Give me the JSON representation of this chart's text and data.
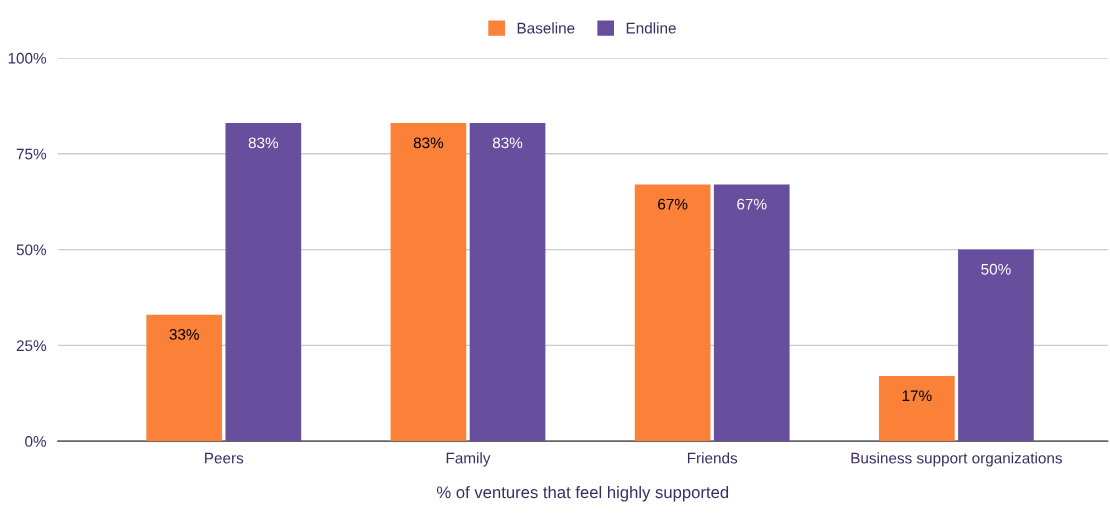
{
  "chart_data": {
    "type": "bar",
    "xlabel": "% of ventures that feel highly supported",
    "categories": [
      "Peers",
      "Family",
      "Friends",
      "Business support organizations"
    ],
    "series": [
      {
        "name": "Baseline",
        "color": "#fb8139",
        "values": [
          33,
          83,
          67,
          17
        ],
        "value_labels": [
          "33%",
          "83%",
          "67%",
          "17%"
        ]
      },
      {
        "name": "Endline",
        "color": "#674f9d",
        "values": [
          83,
          83,
          67,
          50
        ],
        "value_labels": [
          "83%",
          "83%",
          "67%",
          "50%"
        ]
      }
    ],
    "ylim": [
      0,
      100
    ],
    "yticks": [
      {
        "value": 0,
        "label": "0%"
      },
      {
        "value": 25,
        "label": "25%"
      },
      {
        "value": 50,
        "label": "50%"
      },
      {
        "value": 75,
        "label": "75%"
      },
      {
        "value": 100,
        "label": "100%"
      }
    ],
    "grid": "y",
    "legend": "top"
  }
}
